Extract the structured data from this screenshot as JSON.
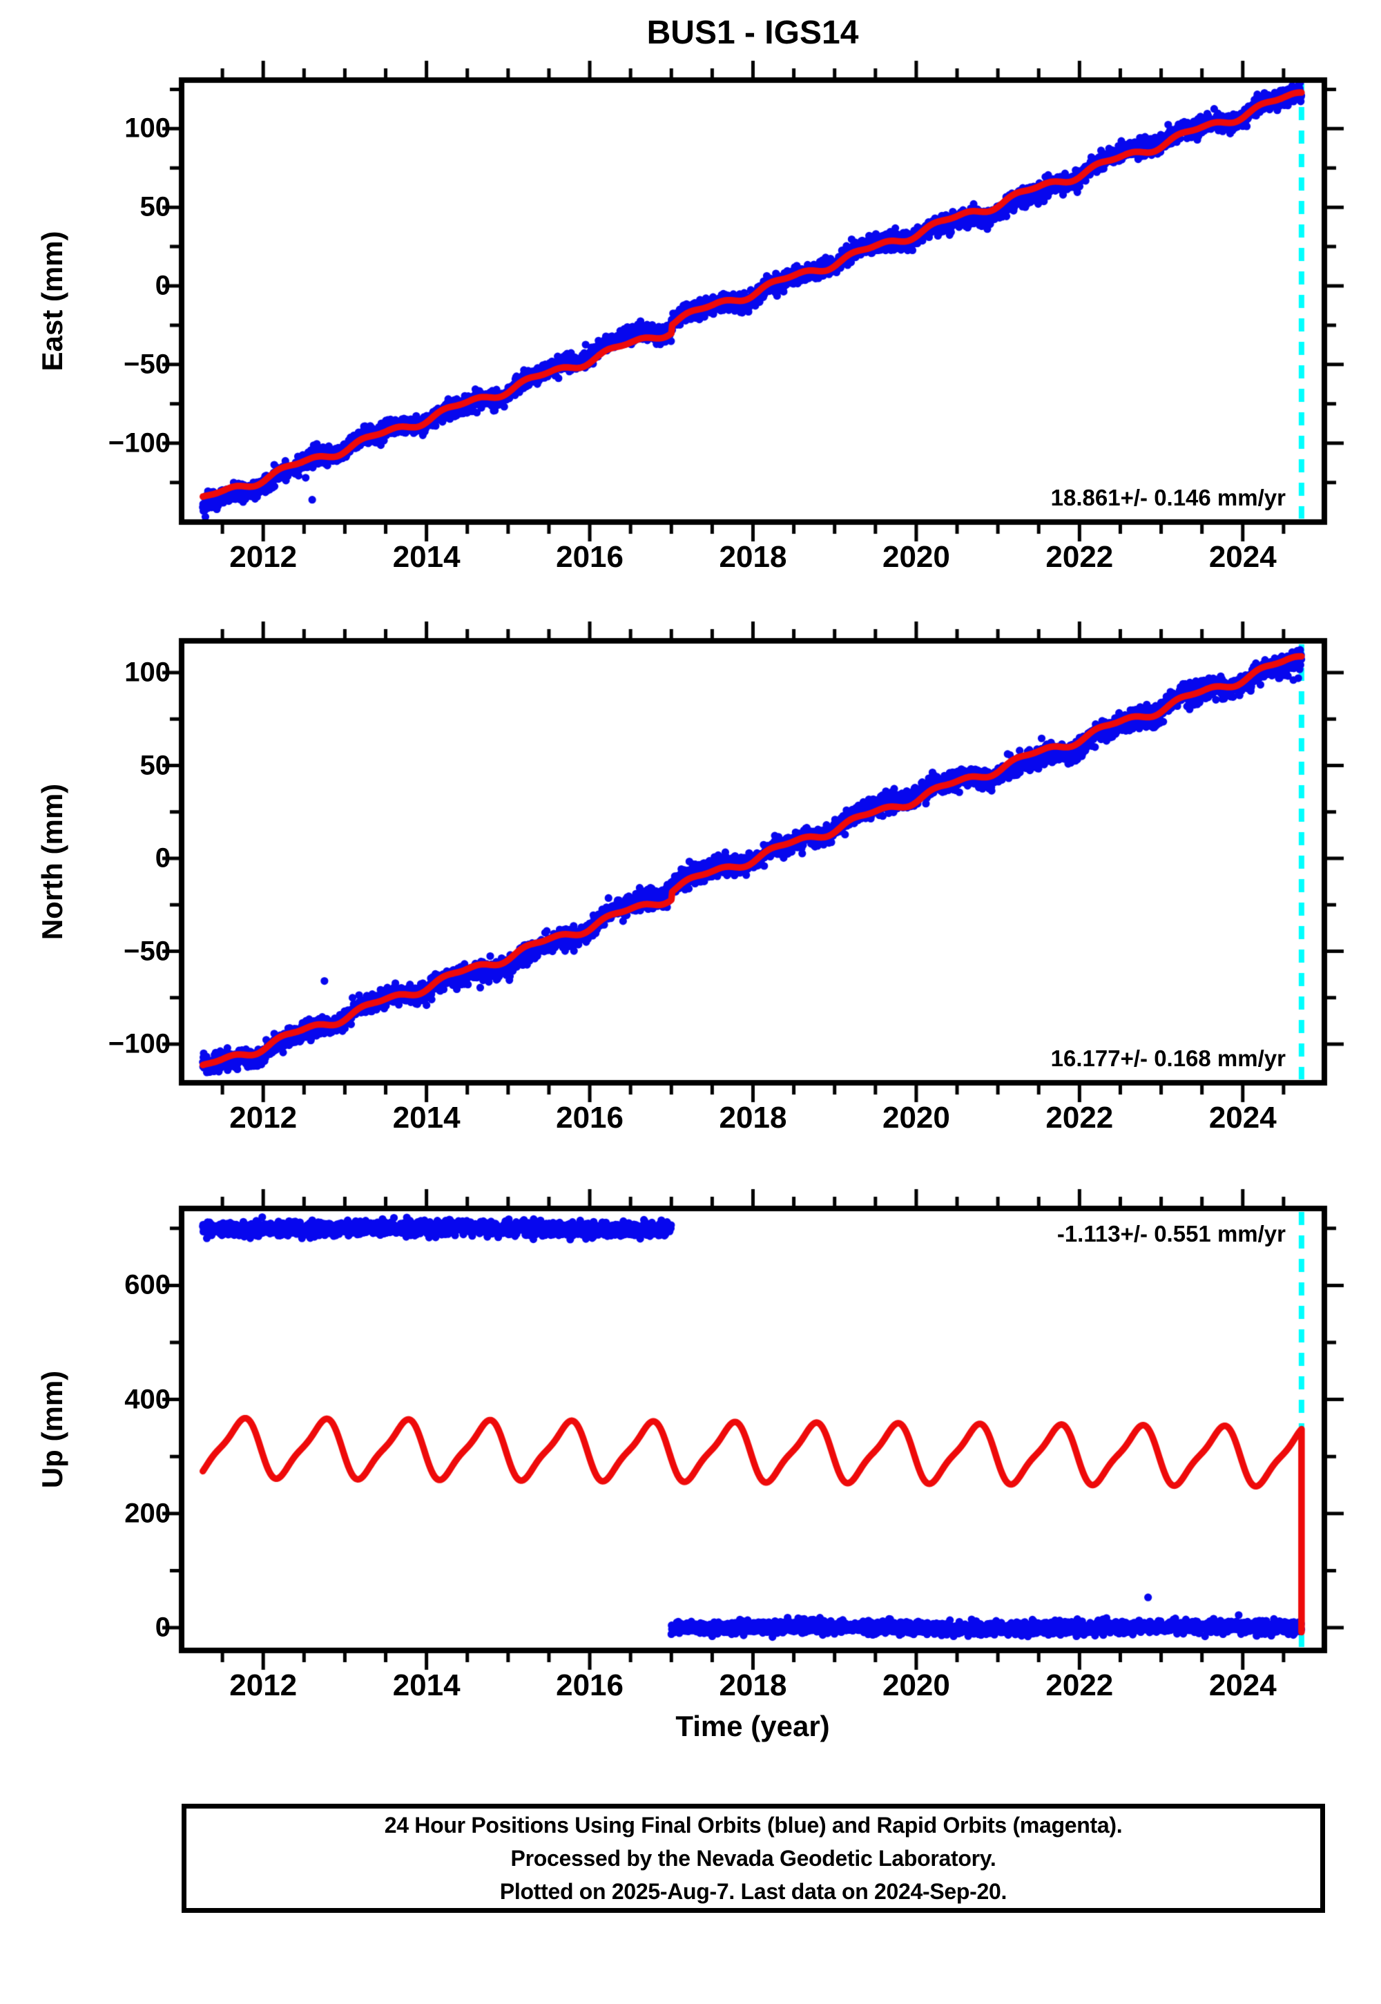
{
  "title": "BUS1 - IGS14",
  "station": "BUS1",
  "reference_frame": "IGS14",
  "colors": {
    "data_blue": "#0707ee",
    "model_red": "#ee0a0a",
    "last_data_cyan": "#00ffff",
    "axis_black": "#000000",
    "background": "#ffffff"
  },
  "time_axis": {
    "label": "Time (year)",
    "range": [
      2011.0,
      2025.0
    ],
    "major_tick_labels": [
      "2012",
      "2014",
      "2016",
      "2018",
      "2020",
      "2022",
      "2024"
    ],
    "major_tick_interval_years": 2,
    "minor_tick_interval_years": 0.5,
    "last_data_marker_year": 2024.72
  },
  "footer": {
    "lines": [
      "24 Hour Positions Using Final Orbits (blue) and Rapid Orbits (magenta).",
      "Processed by the Nevada Geodetic Laboratory.",
      "Plotted on 2025-Aug-7. Last data on 2024-Sep-20."
    ]
  },
  "chart_data": [
    {
      "type": "scatter",
      "component": "East",
      "ylabel": "East (mm)",
      "ylim": [
        -150,
        131
      ],
      "yticks": [
        -100,
        -50,
        0,
        50,
        100
      ],
      "yminor_interval": 25,
      "rate_annotation": "18.861+/- 0.146 mm/yr",
      "series": [
        {
          "name": "daily-positions-final-orbits",
          "color": "blue",
          "start": [
            2011.26,
            -136
          ],
          "end": [
            2024.72,
            123
          ],
          "rate_mm_per_yr": 18.861,
          "noise_sigma_mm": 2.8,
          "seasonal_amp_mm": [
            2.2,
            1.2
          ],
          "offset_at_2017_mm": 5,
          "outliers": [
            [
              2012.52,
              -122
            ],
            [
              2012.6,
              -136
            ],
            [
              2021.88,
              68
            ]
          ]
        },
        {
          "name": "trend-model",
          "color": "red",
          "trend_points": [
            [
              2011.26,
              -136
            ],
            [
              2012,
              -122.0
            ],
            [
              2013,
              -103.2
            ],
            [
              2014,
              -84.3
            ],
            [
              2015,
              -65.5
            ],
            [
              2016,
              -46.6
            ],
            [
              2017,
              -22.7
            ],
            [
              2018,
              -3.9
            ],
            [
              2019,
              15.0
            ],
            [
              2020,
              33.8
            ],
            [
              2021,
              52.7
            ],
            [
              2022,
              71.6
            ],
            [
              2023,
              90.4
            ],
            [
              2024,
              109.3
            ],
            [
              2024.72,
              122.9
            ]
          ]
        }
      ]
    },
    {
      "type": "scatter",
      "component": "North",
      "ylabel": "North (mm)",
      "ylim": [
        -121,
        117
      ],
      "yticks": [
        -100,
        -50,
        0,
        50,
        100
      ],
      "yminor_interval": 25,
      "rate_annotation": "16.177+/- 0.168 mm/yr",
      "series": [
        {
          "name": "daily-positions-final-orbits",
          "color": "blue",
          "start": [
            2011.26,
            -113
          ],
          "end": [
            2024.72,
            108.7
          ],
          "rate_mm_per_yr": 16.177,
          "noise_sigma_mm": 2.6,
          "seasonal_amp_mm": [
            2.0,
            1.0
          ],
          "offset_at_2017_mm": 4,
          "outliers": [
            [
              2012.75,
              -66
            ],
            [
              2024.62,
              96
            ],
            [
              2024.68,
              97
            ]
          ]
        },
        {
          "name": "trend-model",
          "color": "red",
          "trend_points": [
            [
              2011.26,
              -113
            ],
            [
              2012,
              -101.0
            ],
            [
              2013,
              -84.9
            ],
            [
              2014,
              -68.7
            ],
            [
              2015,
              -52.5
            ],
            [
              2016,
              -36.3
            ],
            [
              2017,
              -16.2
            ],
            [
              2018,
              0.0
            ],
            [
              2019,
              16.2
            ],
            [
              2020,
              32.3
            ],
            [
              2021,
              48.5
            ],
            [
              2022,
              64.7
            ],
            [
              2023,
              80.9
            ],
            [
              2024,
              97.1
            ],
            [
              2024.72,
              108.7
            ]
          ]
        }
      ]
    },
    {
      "type": "scatter",
      "component": "Up",
      "ylabel": "Up (mm)",
      "ylim": [
        -40,
        735
      ],
      "yticks": [
        0,
        200,
        400,
        600
      ],
      "yminor_interval": 100,
      "rate_annotation": "-1.113+/- 0.551 mm/yr",
      "series": [
        {
          "name": "daily-positions-final-orbits",
          "color": "blue",
          "segments": [
            {
              "range": [
                2011.26,
                2017.0
              ],
              "level_mm": 700,
              "noise_sigma_mm": 6.0
            },
            {
              "range": [
                2017.0,
                2024.72
              ],
              "level_mm": 0,
              "noise_sigma_mm": 5.5
            }
          ],
          "outliers": [
            [
              2022.84,
              53
            ],
            [
              2023.95,
              22
            ]
          ]
        },
        {
          "name": "seasonal-model",
          "color": "red",
          "mean_mm_start": 315,
          "rate_mm_per_yr": -1.113,
          "annual_amplitude_mm": 48,
          "semiannual_amplitude_mm": 12,
          "annual_peak_phase_yr": 0.72,
          "seasonal_peak_mm": 365,
          "seasonal_trough_mm": 270,
          "final_drop": {
            "year": 2024.72,
            "from_mm": 330,
            "to_mm": -8
          }
        }
      ]
    }
  ]
}
